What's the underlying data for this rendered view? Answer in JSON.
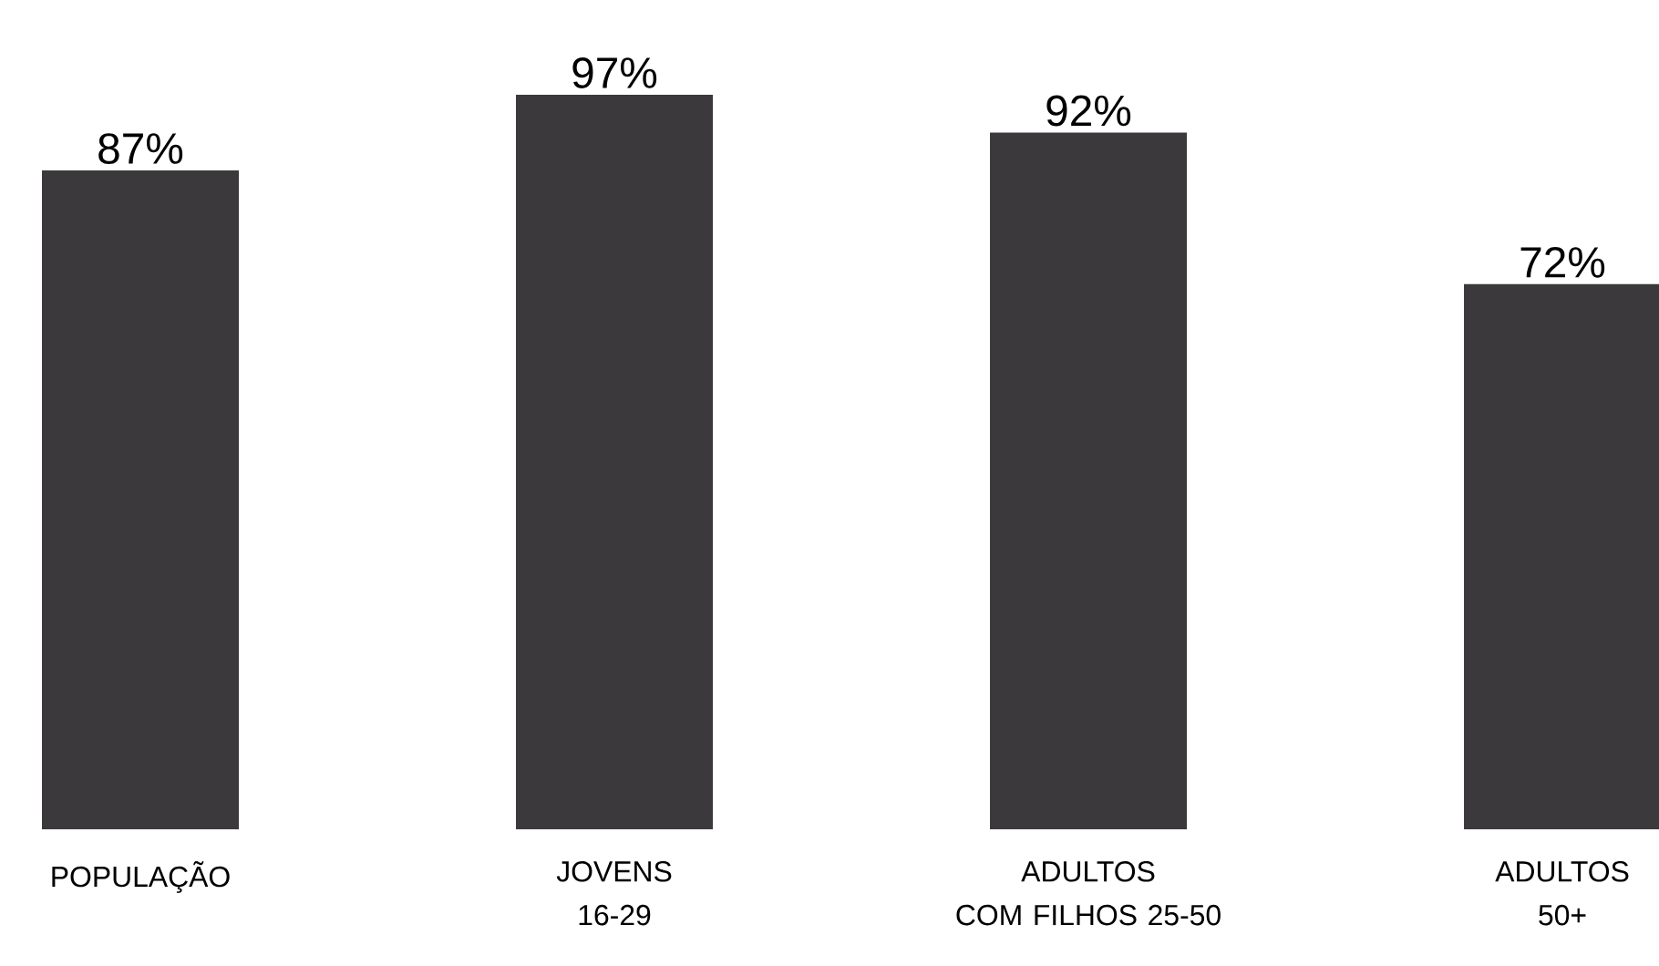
{
  "chart_data": {
    "type": "bar",
    "categories": [
      "POPULAÇÃO",
      "JOVENS\n16-29",
      "ADULTOS\nCOM FILHOS 25-50",
      "ADULTOS\n50+"
    ],
    "values": [
      87,
      97,
      92,
      72
    ],
    "value_labels": [
      "87%",
      "97%",
      "92%",
      "72%"
    ],
    "color": "#3b393c"
  }
}
